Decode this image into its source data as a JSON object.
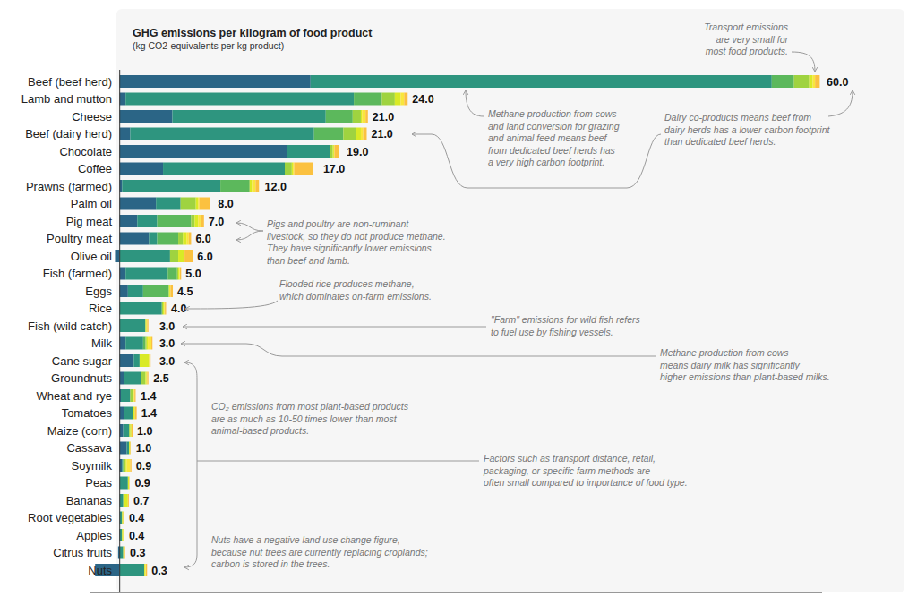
{
  "chart_data": {
    "type": "bar",
    "orientation": "horizontal",
    "stacked": true,
    "title": "GHG emissions per kilogram of food product",
    "subtitle": "(kg CO2-equivalents per kg product)",
    "categories": [
      "Beef (beef herd)",
      "Lamb and mutton",
      "Cheese",
      "Beef (dairy herd)",
      "Chocolate",
      "Coffee",
      "Prawns (farmed)",
      "Palm oil",
      "Pig meat",
      "Poultry meat",
      "Olive oil",
      "Fish (farmed)",
      "Eggs",
      "Rice",
      "Fish (wild catch)",
      "Milk",
      "Cane sugar",
      "Groundnuts",
      "Wheat and rye",
      "Tomatoes",
      "Maize (corn)",
      "Cassava",
      "Soymilk",
      "Peas",
      "Bananas",
      "Root vegetables",
      "Apples",
      "Citrus fruits",
      "Nuts"
    ],
    "series": [
      {
        "color": "#2b6586",
        "values": [
          16.3,
          0.5,
          4.5,
          0.9,
          14.3,
          3.7,
          0.2,
          3.1,
          1.5,
          2.5,
          -0.4,
          0.5,
          0.7,
          0,
          0,
          0.5,
          1.2,
          0.4,
          0.1,
          0.4,
          0.3,
          0.6,
          0.2,
          0,
          0,
          0,
          -0.03,
          -0.14,
          -2.1
        ]
      },
      {
        "color": "#2e957f",
        "values": [
          39.4,
          19.5,
          13.1,
          15.7,
          3.7,
          10.4,
          8.4,
          2.1,
          1.7,
          0.7,
          4.3,
          3.6,
          1.3,
          3.6,
          2.2,
          1.5,
          0.5,
          1.4,
          0.8,
          0.7,
          0.5,
          0.2,
          0.1,
          0.7,
          0.3,
          0.2,
          0.2,
          0.3,
          2.1
        ]
      },
      {
        "color": "#5cb85c",
        "values": [
          1.9,
          2.4,
          2.3,
          2.5,
          0,
          0,
          2.5,
          0,
          2.9,
          1.8,
          0,
          0.8,
          2.2,
          0,
          0,
          0.2,
          0,
          0,
          0,
          0,
          0,
          0,
          0,
          0,
          0,
          0,
          0,
          0,
          0
        ]
      },
      {
        "color": "#9fd340",
        "values": [
          1.3,
          1.1,
          0.7,
          1.1,
          0.2,
          0.6,
          0,
          1.3,
          0.3,
          0.4,
          0.7,
          0.1,
          0,
          0.1,
          0,
          0.1,
          0,
          0.4,
          0.2,
          0,
          0.1,
          0,
          0.2,
          0,
          0.1,
          0,
          0,
          0,
          0
        ]
      },
      {
        "color": "#d9ea26",
        "values": [
          0.3,
          0.5,
          0.1,
          0.4,
          0.1,
          0.1,
          0.2,
          0.2,
          0.3,
          0.3,
          0.5,
          0.1,
          0.1,
          0.1,
          0.1,
          0.1,
          0.8,
          0.1,
          0.1,
          0.2,
          0.1,
          0.1,
          0.1,
          0.1,
          0.3,
          0.1,
          0.1,
          0.1,
          0.1
        ]
      },
      {
        "color": "#f9e63c",
        "values": [
          0.2,
          0.3,
          0.3,
          0.2,
          0.04,
          0.1,
          0.3,
          0.1,
          0.2,
          0.2,
          0.04,
          0.05,
          0.04,
          0.06,
          0.05,
          0.3,
          0.04,
          0.05,
          0.06,
          0,
          0,
          0,
          0.3,
          0,
          0.02,
          0,
          0.02,
          0.04,
          0.04
        ]
      },
      {
        "color": "#fbc140",
        "values": [
          0.4,
          0.3,
          0.2,
          0.3,
          0.4,
          1.6,
          0.3,
          0.9,
          0.3,
          0.2,
          0.7,
          0.1,
          0.2,
          0.1,
          0.1,
          0.1,
          0.1,
          0.1,
          0.1,
          0.15,
          0.1,
          0.04,
          0.1,
          0.04,
          0.07,
          0.04,
          0.04,
          0.04,
          0.1
        ]
      }
    ],
    "totals": [
      60,
      24,
      21,
      21,
      19,
      17,
      12,
      8,
      7,
      6,
      6,
      5,
      4.5,
      4,
      3,
      3,
      3,
      2.5,
      1.4,
      1.4,
      1,
      1,
      0.9,
      0.9,
      0.7,
      0.4,
      0.4,
      0.3,
      0.3
    ],
    "total_labels": [
      "60.0",
      "24.0",
      "21.0",
      "21.0",
      "19.0",
      "17.0",
      "12.0",
      "8.0",
      "7.0",
      "6.0",
      "6.0",
      "5.0",
      "4.5",
      "4.0",
      "3.0",
      "3.0",
      "3.0",
      "2.5",
      "1.4",
      "1.4",
      "1.0",
      "1.0",
      "0.9",
      "0.9",
      "0.7",
      "0.4",
      "0.4",
      "0.3",
      "0.3"
    ],
    "xlim": [
      -2.5,
      60
    ],
    "tick_labels": "y",
    "grid": false,
    "annotations": [
      {
        "lines": [
          "Transport emissions",
          "are very small for",
          "most food products."
        ]
      },
      {
        "lines": [
          "Methane production from cows",
          "and land conversion for grazing",
          "and animal feed means beef",
          "from dedicated beef herds has",
          "a very high carbon footprint."
        ]
      },
      {
        "lines": [
          "Dairy co-products means beef from",
          "dairy herds has a lower carbon footprint",
          "than dedicated beef herds."
        ]
      },
      {
        "lines": [
          "Pigs and poultry are non-ruminant",
          "livestock, so they do not produce methane.",
          "They have significantly lower emissions",
          "than beef and lamb."
        ]
      },
      {
        "lines": [
          "Flooded rice produces methane,",
          "which dominates on-farm emissions."
        ]
      },
      {
        "lines": [
          "\"Farm\" emissions for wild fish refers",
          "to fuel use by fishing vessels."
        ]
      },
      {
        "lines": [
          "Methane production from cows",
          "means dairy milk has significantly",
          "higher emissions than plant-based milks."
        ]
      },
      {
        "lines": [
          "CO₂ emissions from most plant-based products",
          "are as much as 10-50 times lower than most",
          "animal-based products."
        ]
      },
      {
        "lines": [
          "Factors such as transport distance, retail,",
          "packaging, or specific farm methods are",
          "often small compared to importance of food type."
        ]
      },
      {
        "lines": [
          "Nuts have a negative land use change figure,",
          "because nut trees are currently replacing croplands;",
          "carbon is stored in the trees."
        ]
      }
    ]
  }
}
